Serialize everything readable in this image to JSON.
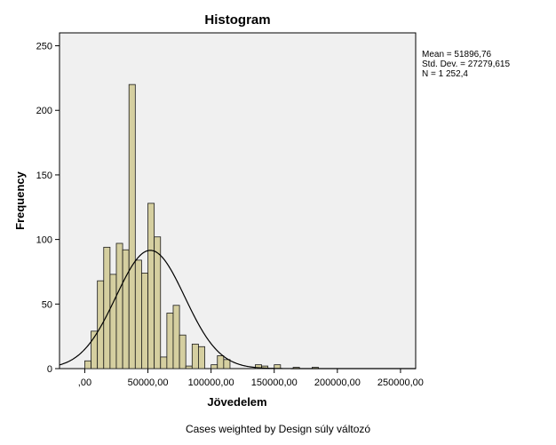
{
  "chart_data": {
    "type": "bar",
    "title": "Histogram",
    "xlabel": "Jövedelem",
    "ylabel": "Frequency",
    "xlim": [
      -20000,
      262000
    ],
    "ylim": [
      0,
      260
    ],
    "x_ticks": [
      0,
      50000,
      100000,
      150000,
      200000,
      250000
    ],
    "x_tick_labels": [
      ",00",
      "50000,00",
      "100000,00",
      "150000,00",
      "200000,00",
      "250000,00"
    ],
    "y_ticks": [
      0,
      50,
      100,
      150,
      200,
      250
    ],
    "y_tick_labels": [
      "0",
      "50",
      "100",
      "150",
      "200",
      "250"
    ],
    "bin_width": 5000,
    "bins": [
      {
        "x": 2500,
        "y": 6
      },
      {
        "x": 7500,
        "y": 29
      },
      {
        "x": 12500,
        "y": 68
      },
      {
        "x": 17500,
        "y": 94
      },
      {
        "x": 22500,
        "y": 73
      },
      {
        "x": 27500,
        "y": 97
      },
      {
        "x": 32500,
        "y": 92
      },
      {
        "x": 37500,
        "y": 220
      },
      {
        "x": 42500,
        "y": 84
      },
      {
        "x": 47500,
        "y": 74
      },
      {
        "x": 52500,
        "y": 128
      },
      {
        "x": 57500,
        "y": 102
      },
      {
        "x": 62500,
        "y": 9
      },
      {
        "x": 67500,
        "y": 43
      },
      {
        "x": 72500,
        "y": 49
      },
      {
        "x": 77500,
        "y": 26
      },
      {
        "x": 82500,
        "y": 2
      },
      {
        "x": 87500,
        "y": 19
      },
      {
        "x": 92500,
        "y": 17
      },
      {
        "x": 102500,
        "y": 3
      },
      {
        "x": 107500,
        "y": 10
      },
      {
        "x": 112500,
        "y": 7
      },
      {
        "x": 137500,
        "y": 3
      },
      {
        "x": 142500,
        "y": 2
      },
      {
        "x": 152500,
        "y": 3
      },
      {
        "x": 167500,
        "y": 1
      },
      {
        "x": 182500,
        "y": 1
      }
    ],
    "normal_curve": {
      "mean": 51896.76,
      "std": 27279.615,
      "n": 1252.4
    },
    "stats_text": [
      "Mean = 51896,76",
      "Std. Dev. = 27279,615",
      "N = 1 252,4"
    ],
    "grid": false,
    "colors": {
      "bar_fill": "#D5CFA0",
      "bar_stroke": "#1a1a1a",
      "plot_bg": "#F0F0F0",
      "curve": "#000000"
    }
  },
  "footnote": "Cases weighted by Design súly változó"
}
